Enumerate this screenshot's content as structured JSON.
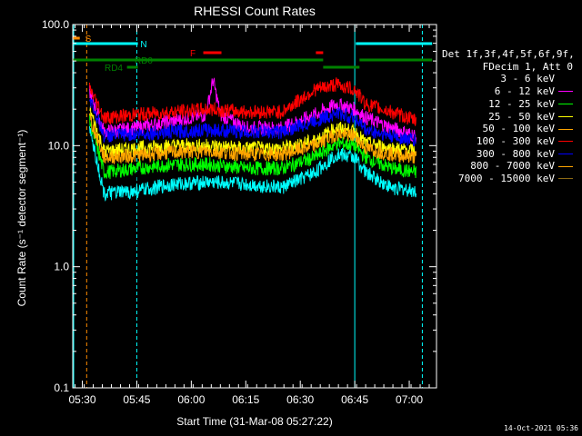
{
  "chart_data": {
    "type": "line",
    "title": "RHESSI Count Rates",
    "xlabel": "Start Time (31-Mar-08 05:27:22)",
    "ylabel": "Count Rate (s⁻¹ detector segment⁻¹)",
    "y_scale": "log",
    "ylim": [
      0.1,
      100
    ],
    "y_ticks": [
      "0.1",
      "1.0",
      "10.0",
      "100.0"
    ],
    "x_range_minutes": [
      "05:27",
      "07:07"
    ],
    "x_ticks": [
      "05:30",
      "05:45",
      "06:00",
      "06:15",
      "06:30",
      "06:45",
      "07:00"
    ],
    "legend_title": "Det 1f,3f,4f,5f,6f,9f,\nFDecim 1, Att 0",
    "series": [
      {
        "name": "3 - 6 keV",
        "color": "#000000",
        "x": [
          "05:32",
          "05:36",
          "05:45",
          "05:55",
          "06:04",
          "06:06",
          "06:08",
          "06:15",
          "06:25",
          "06:34",
          "06:40",
          "06:45",
          "06:48",
          "06:55",
          "07:02"
        ],
        "values": [
          22,
          5.0,
          5.5,
          7.0,
          7.5,
          12,
          7.5,
          5.5,
          5.5,
          7.5,
          11,
          10,
          7.5,
          5.5,
          5.0
        ]
      },
      {
        "name": "6 - 12 keV",
        "color": "#ff00ff",
        "x": [
          "05:32",
          "05:36",
          "05:45",
          "05:55",
          "06:04",
          "06:06",
          "06:08",
          "06:15",
          "06:25",
          "06:34",
          "06:40",
          "06:45",
          "06:48",
          "06:55",
          "07:02"
        ],
        "values": [
          28,
          13,
          14,
          16,
          18,
          35,
          18,
          14,
          14,
          18,
          22,
          20,
          17,
          14,
          12
        ]
      },
      {
        "name": "12 - 25 keV",
        "color": "#00ff00",
        "x": [
          "05:32",
          "05:36",
          "05:45",
          "05:55",
          "06:05",
          "06:15",
          "06:25",
          "06:34",
          "06:40",
          "06:45",
          "06:48",
          "06:55",
          "07:02"
        ],
        "values": [
          16,
          6.0,
          6.5,
          7.0,
          7.0,
          6.5,
          6.5,
          8.0,
          10.5,
          10,
          8.0,
          6.5,
          6.0
        ]
      },
      {
        "name": "25 - 50 keV",
        "color": "#ffff00",
        "x": [
          "05:32",
          "05:36",
          "05:45",
          "05:55",
          "06:05",
          "06:15",
          "06:25",
          "06:34",
          "06:40",
          "06:45",
          "06:48",
          "06:55",
          "07:02"
        ],
        "values": [
          20,
          9.0,
          9.5,
          10,
          10,
          9.5,
          9.5,
          11,
          14,
          13,
          10.5,
          9.5,
          9.0
        ]
      },
      {
        "name": "50 - 100 keV",
        "color": "#ffa500",
        "x": [
          "05:32",
          "05:36",
          "05:45",
          "05:55",
          "06:05",
          "06:15",
          "06:25",
          "06:34",
          "06:40",
          "06:45",
          "06:48",
          "06:55",
          "07:02"
        ],
        "values": [
          17,
          8.0,
          8.3,
          8.8,
          9.0,
          8.5,
          8.5,
          10,
          12.5,
          12,
          9.5,
          8.5,
          8.0
        ]
      },
      {
        "name": "100 - 300 keV",
        "color": "#ff0000",
        "x": [
          "05:32",
          "05:36",
          "05:45",
          "05:55",
          "06:05",
          "06:15",
          "06:25",
          "06:34",
          "06:40",
          "06:45",
          "06:48",
          "06:55",
          "07:02"
        ],
        "values": [
          30,
          17,
          18,
          19,
          20,
          19,
          19,
          29,
          32,
          29,
          22,
          19,
          16
        ]
      },
      {
        "name": "300 - 800 keV",
        "color": "#0000ff",
        "x": [
          "05:32",
          "05:36",
          "05:45",
          "05:55",
          "06:05",
          "06:15",
          "06:25",
          "06:34",
          "06:40",
          "06:45",
          "06:48",
          "06:55",
          "07:02"
        ],
        "values": [
          25,
          12,
          12.5,
          13,
          13.5,
          13,
          13,
          16,
          18.5,
          17,
          13.5,
          12,
          11
        ]
      },
      {
        "name": "800 - 7000 keV",
        "color": "#ffa500",
        "x": [],
        "values": []
      },
      {
        "name": "7000 - 15000 keV",
        "color": "#8b6914",
        "x": [],
        "values": []
      },
      {
        "name": "",
        "color": "#00ffff",
        "x": [
          "05:32",
          "05:36",
          "05:45",
          "05:55",
          "06:05",
          "06:15",
          "06:25",
          "06:34",
          "06:40",
          "06:45",
          "06:48",
          "06:55",
          "07:02"
        ],
        "values": [
          14,
          4.0,
          4.2,
          4.8,
          5.0,
          4.8,
          4.5,
          6.0,
          8.5,
          8.0,
          6.0,
          4.5,
          4.2
        ]
      }
    ],
    "markers": {
      "S": "S",
      "N": "N",
      "F": "F",
      "RD0": "RD0",
      "RD4": "RD4"
    }
  },
  "footer": "14-Oct-2021 05:36"
}
